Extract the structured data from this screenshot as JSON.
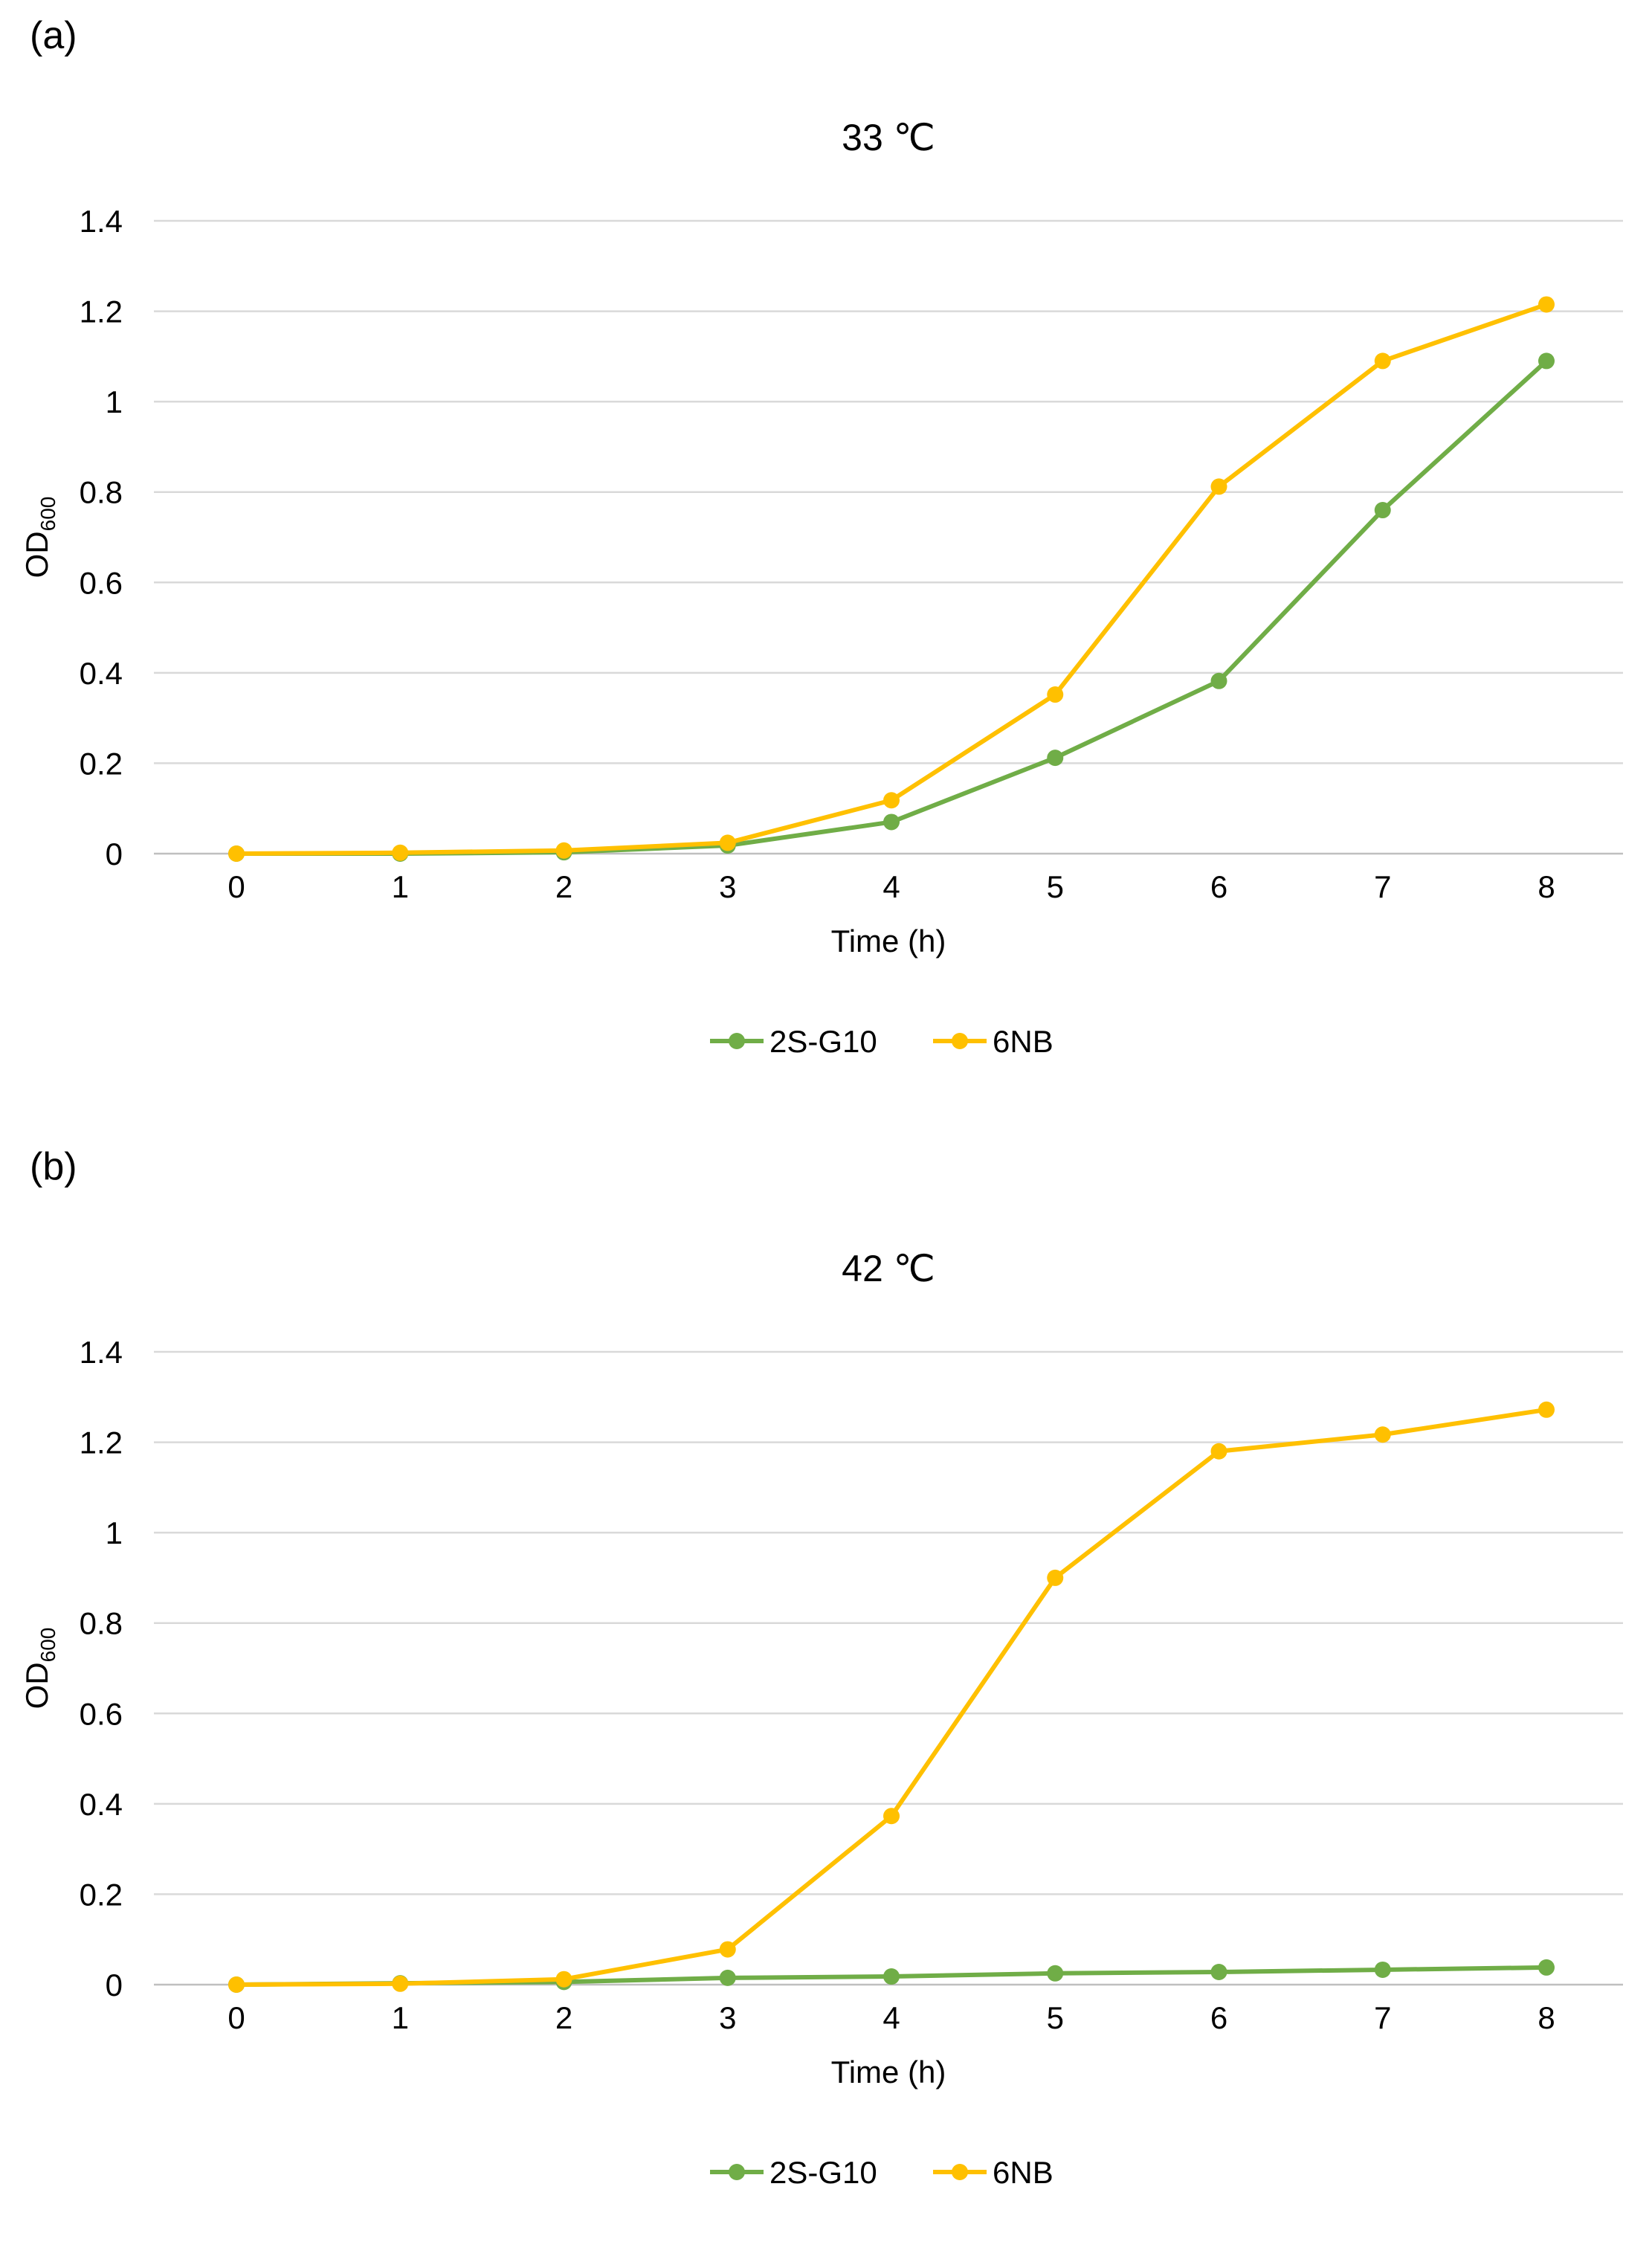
{
  "panels": [
    {
      "label": "(a)",
      "chart_data": {
        "type": "line",
        "title": "33 ℃",
        "xlabel": "Time (h)",
        "ylabel": "OD",
        "ylabel_sub": "600",
        "x": [
          0,
          1,
          2,
          3,
          4,
          5,
          6,
          7,
          8
        ],
        "x_tick_labels": [
          "0",
          "1",
          "2",
          "3",
          "4",
          "5",
          "6",
          "7",
          "8"
        ],
        "ylim": [
          0,
          1.4
        ],
        "y_ticks": [
          0,
          0.2,
          0.4,
          0.6,
          0.8,
          1,
          1.2,
          1.4
        ],
        "y_tick_labels": [
          "0",
          "0.2",
          "0.4",
          "0.6",
          "0.8",
          "1",
          "1.2",
          "1.4"
        ],
        "grid": true,
        "legend_position": "bottom",
        "series": [
          {
            "name": "2S-G10",
            "color": "#70AD47",
            "values": [
              0,
              0,
              0.003,
              0.018,
              0.07,
              0.212,
              0.382,
              0.76,
              1.09
            ]
          },
          {
            "name": "6NB",
            "color": "#FFC000",
            "values": [
              0,
              0.002,
              0.007,
              0.024,
              0.118,
              0.352,
              0.812,
              1.09,
              1.215
            ]
          }
        ]
      }
    },
    {
      "label": "(b)",
      "chart_data": {
        "type": "line",
        "title": "42 ℃",
        "xlabel": "Time (h)",
        "ylabel": "OD",
        "ylabel_sub": "600",
        "x": [
          0,
          1,
          2,
          3,
          4,
          5,
          6,
          7,
          8
        ],
        "x_tick_labels": [
          "0",
          "1",
          "2",
          "3",
          "4",
          "5",
          "6",
          "7",
          "8"
        ],
        "ylim": [
          0,
          1.4
        ],
        "y_ticks": [
          0,
          0.2,
          0.4,
          0.6,
          0.8,
          1,
          1.2,
          1.4
        ],
        "y_tick_labels": [
          "0",
          "0.2",
          "0.4",
          "0.6",
          "0.8",
          "1",
          "1.2",
          "1.4"
        ],
        "grid": true,
        "legend_position": "bottom",
        "series": [
          {
            "name": "2S-G10",
            "color": "#70AD47",
            "values": [
              0,
              0.003,
              0.006,
              0.015,
              0.018,
              0.025,
              0.028,
              0.033,
              0.038
            ]
          },
          {
            "name": "6NB",
            "color": "#FFC000",
            "values": [
              0,
              0.002,
              0.012,
              0.078,
              0.373,
              0.9,
              1.18,
              1.217,
              1.272
            ]
          }
        ]
      }
    }
  ]
}
